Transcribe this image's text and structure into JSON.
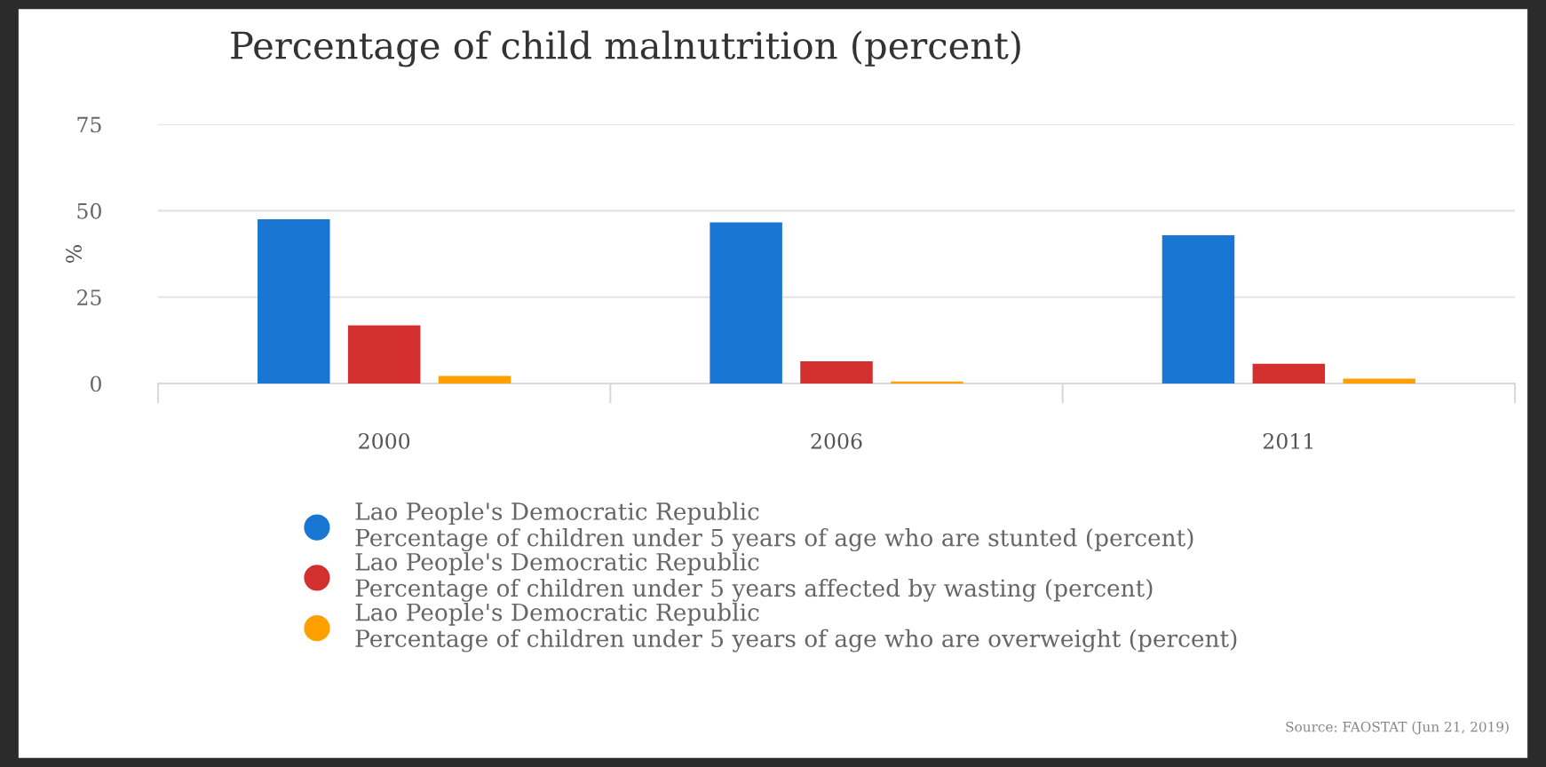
{
  "chart_data": {
    "type": "bar",
    "title": "Percentage of child malnutrition (percent)",
    "ylabel": "%",
    "categories": [
      "2000",
      "2006",
      "2011"
    ],
    "series": [
      {
        "name": "Lao People's Democratic Republic\nPercentage of children under 5 years of age who are stunted (percent)",
        "color": "#1976d2",
        "values": [
          47.5,
          46.6,
          42.9
        ]
      },
      {
        "name": "Lao People's Democratic Republic\nPercentage of children under 5 years affected by wasting (percent)",
        "color": "#d32f2f",
        "values": [
          16.8,
          6.4,
          5.7
        ]
      },
      {
        "name": "Lao People's Democratic Republic\nPercentage of children under 5 years of age who are overweight (percent)",
        "color": "#ffa000",
        "values": [
          2.2,
          0.6,
          1.4
        ]
      }
    ],
    "ylim": [
      0,
      75
    ],
    "yticks": [
      0,
      25,
      50,
      75
    ],
    "grid": "y",
    "legend": "bottom",
    "annotations": [
      "Source: FAOSTAT (Jun 21, 2019)"
    ]
  }
}
